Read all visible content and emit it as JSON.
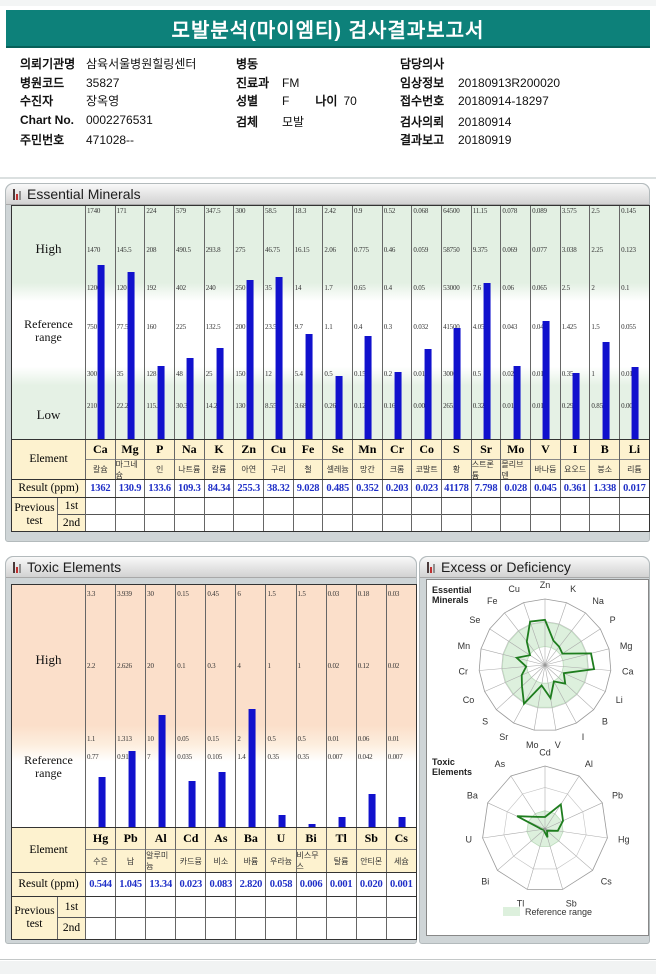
{
  "page": {
    "title": "모발분석(마이엠티) 검사결과보고서"
  },
  "info": {
    "col1": [
      {
        "label": "의뢰기관명",
        "value": "삼육서울병원힐링센터"
      },
      {
        "label": "병원코드",
        "value": "35827"
      },
      {
        "label": "수진자",
        "value": "장옥영"
      },
      {
        "label": "Chart No.",
        "value": "0002276531"
      },
      {
        "label": "주민번호",
        "value": "471028--"
      }
    ],
    "col2": [
      {
        "label": "병동",
        "value": ""
      },
      {
        "label": "진료과",
        "value": "FM"
      },
      {
        "label": "성별",
        "value": "F",
        "label2": "나이",
        "value2": "70"
      },
      {
        "label": "검체",
        "value": "모발"
      }
    ],
    "col3": [
      {
        "label": "담당의사",
        "value": ""
      },
      {
        "label": "임상정보",
        "value": "20180913R200020"
      },
      {
        "label": "접수번호",
        "value": "20180914-18297"
      },
      {
        "label": "검사의뢰",
        "value": "20180914"
      },
      {
        "label": "결과보고",
        "value": "20180919"
      }
    ]
  },
  "table_labels": {
    "element": "Element",
    "result": "Result (ppm)",
    "previous": "Previous test",
    "first": "1st",
    "second": "2nd"
  },
  "essential": {
    "title": "Essential Minerals",
    "bands": {
      "high": "High",
      "reference": "Reference range",
      "low": "Low"
    },
    "elements": [
      {
        "symbol": "Ca",
        "korean": "칼슘",
        "scale": [
          1740,
          1470,
          1200,
          750,
          300,
          210
        ],
        "result": "1362"
      },
      {
        "symbol": "Mg",
        "korean": "마그네슘",
        "scale": [
          171,
          145.5,
          120,
          77.5,
          35,
          22.25
        ],
        "result": "130.9"
      },
      {
        "symbol": "P",
        "korean": "인",
        "scale": [
          224,
          208,
          192,
          160,
          128,
          115.2
        ],
        "result": "133.6"
      },
      {
        "symbol": "Na",
        "korean": "나트륨",
        "scale": [
          579,
          490.5,
          402,
          225,
          48,
          30.3
        ],
        "result": "109.3"
      },
      {
        "symbol": "K",
        "korean": "칼륨",
        "scale": [
          347.5,
          293.8,
          240,
          132.5,
          25,
          14.25
        ],
        "result": "84.34"
      },
      {
        "symbol": "Zn",
        "korean": "아연",
        "scale": [
          300,
          275,
          250,
          200,
          150,
          130
        ],
        "result": "255.3"
      },
      {
        "symbol": "Cu",
        "korean": "구리",
        "scale": [
          58.5,
          46.75,
          35,
          23.5,
          12,
          8.55
        ],
        "result": "38.32"
      },
      {
        "symbol": "Fe",
        "korean": "철",
        "scale": [
          18.3,
          16.15,
          14,
          9.7,
          5.4,
          3.68
        ],
        "result": "9.028"
      },
      {
        "symbol": "Se",
        "korean": "셀레늄",
        "scale": [
          2.42,
          2.06,
          1.7,
          1.1,
          0.5,
          0.26
        ],
        "result": "0.485"
      },
      {
        "symbol": "Mn",
        "korean": "망간",
        "scale": [
          0.9,
          0.775,
          0.65,
          0.4,
          0.15,
          0.125
        ],
        "result": "0.352"
      },
      {
        "symbol": "Cr",
        "korean": "크롬",
        "scale": [
          0.52,
          0.46,
          0.4,
          0.3,
          0.2,
          0.16
        ],
        "result": "0.203"
      },
      {
        "symbol": "Co",
        "korean": "코발트",
        "scale": [
          0.068,
          0.059,
          0.05,
          0.032,
          0.013,
          0.007
        ],
        "result": "0.023"
      },
      {
        "symbol": "S",
        "korean": "황",
        "scale": [
          64500,
          58750,
          53000,
          41500,
          30000,
          26550
        ],
        "result": "41178"
      },
      {
        "symbol": "Sr",
        "korean": "스트론튬",
        "scale": [
          11.15,
          9.375,
          7.6,
          4.05,
          0.5,
          0.322
        ],
        "result": "7.798"
      },
      {
        "symbol": "Mo",
        "korean": "몰리브덴",
        "scale": [
          0.078,
          0.069,
          0.06,
          0.043,
          0.025,
          0.018
        ],
        "result": "0.028"
      },
      {
        "symbol": "V",
        "korean": "바나듐",
        "scale": [
          0.089,
          0.077,
          0.065,
          0.041,
          0.018,
          0.011
        ],
        "result": "0.045"
      },
      {
        "symbol": "I",
        "korean": "요오드",
        "scale": [
          3.575,
          3.038,
          2.5,
          1.425,
          0.35,
          0.296
        ],
        "result": "0.361"
      },
      {
        "symbol": "B",
        "korean": "붕소",
        "scale": [
          2.5,
          2.25,
          2,
          1.5,
          1,
          0.85
        ],
        "result": "1.338"
      },
      {
        "symbol": "Li",
        "korean": "리튬",
        "scale": [
          0.145,
          0.123,
          0.1,
          0.055,
          0.01,
          0.008
        ],
        "result": "0.017"
      }
    ]
  },
  "toxic": {
    "title": "Toxic Elements",
    "bands": {
      "high": "High",
      "reference": "Reference range"
    },
    "elements": [
      {
        "symbol": "Hg",
        "korean": "수은",
        "scale": [
          3.3,
          2.2,
          1.1,
          0.77
        ],
        "result": "0.544"
      },
      {
        "symbol": "Pb",
        "korean": "납",
        "scale": [
          3.939,
          2.626,
          1.313,
          0.919
        ],
        "result": "1.045"
      },
      {
        "symbol": "Al",
        "korean": "알루미늄",
        "scale": [
          30,
          20,
          10,
          7
        ],
        "result": "13.34"
      },
      {
        "symbol": "Cd",
        "korean": "카드뮴",
        "scale": [
          0.15,
          0.1,
          0.05,
          0.035
        ],
        "result": "0.023"
      },
      {
        "symbol": "As",
        "korean": "비소",
        "scale": [
          0.45,
          0.3,
          0.15,
          0.105
        ],
        "result": "0.083"
      },
      {
        "symbol": "Ba",
        "korean": "바륨",
        "scale": [
          6,
          4,
          2,
          1.4
        ],
        "result": "2.820"
      },
      {
        "symbol": "U",
        "korean": "우라늄",
        "scale": [
          1.5,
          1,
          0.5,
          0.35
        ],
        "result": "0.058"
      },
      {
        "symbol": "Bi",
        "korean": "비스무스",
        "scale": [
          1.5,
          1,
          0.5,
          0.35
        ],
        "result": "0.006"
      },
      {
        "symbol": "Tl",
        "korean": "탈륨",
        "scale": [
          0.03,
          0.02,
          0.01,
          0.007
        ],
        "result": "0.001"
      },
      {
        "symbol": "Sb",
        "korean": "안티몬",
        "scale": [
          0.18,
          0.12,
          0.06,
          0.042
        ],
        "result": "0.020"
      },
      {
        "symbol": "Cs",
        "korean": "세슘",
        "scale": [
          0.03,
          0.02,
          0.01,
          0.007
        ],
        "result": "0.001"
      }
    ]
  },
  "excess": {
    "title": "Excess or Deficiency",
    "essential_label": "Essential Minerals",
    "toxic_label": "Toxic Elements",
    "legend": "Reference range",
    "essential_axes": [
      "Zn",
      "K",
      "Na",
      "P",
      "Mg",
      "Ca",
      "Li",
      "B",
      "I",
      "V",
      "Mo",
      "Sr",
      "S",
      "Co",
      "Cr",
      "Mn",
      "Se",
      "Fe",
      "Cu"
    ],
    "toxic_axes": [
      "Cd",
      "Al",
      "Pb",
      "Hg",
      "Cs",
      "Sb",
      "Tl",
      "Bi",
      "U",
      "Ba",
      "As"
    ]
  },
  "colors": {
    "banner_teal": "#0d817a",
    "bar_blue": "#1111cd",
    "result_blue": "#2030c8",
    "essential_band_green": "#e3f0e3",
    "toxic_band_peach": "#fbdfca",
    "table_header_cream": "#fdf2cf",
    "radar_zone_green": "#ddf0dd",
    "radar_line_green": "#1e7d1e"
  }
}
